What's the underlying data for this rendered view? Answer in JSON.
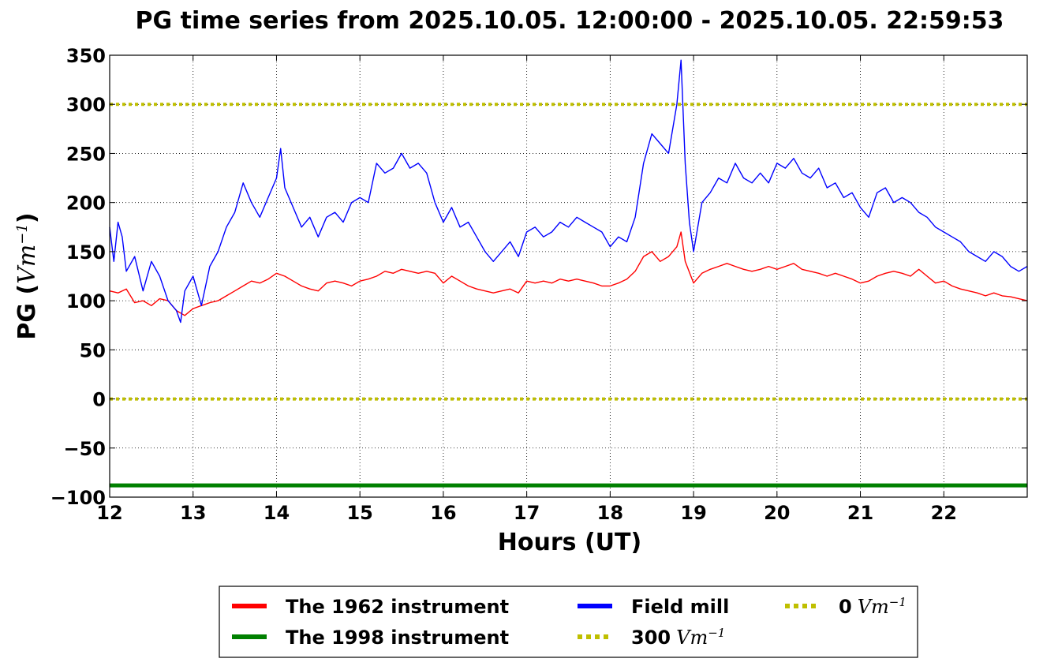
{
  "chart_data": {
    "type": "line",
    "title": "PG time series from 2025.10.05. 12:00:00 - 2025.10.05. 22:59:53",
    "xlabel": "Hours (UT)",
    "ylabel": {
      "prefix": "PG (",
      "math": "Vm",
      "sup": "−1",
      "suffix": ")"
    },
    "xlim": [
      12,
      23
    ],
    "ylim": [
      -100,
      350
    ],
    "x_ticks": [
      "12",
      "13",
      "14",
      "15",
      "16",
      "17",
      "18",
      "19",
      "20",
      "21",
      "22"
    ],
    "y_ticks": [
      "350",
      "300",
      "250",
      "200",
      "150",
      "100",
      "50",
      "0",
      "−50",
      "−100"
    ],
    "grid": true,
    "legend_position": "bottom-center",
    "series": [
      {
        "name": "The 1962 instrument",
        "color": "#ff0000",
        "x": [
          12.0,
          12.1,
          12.2,
          12.3,
          12.4,
          12.5,
          12.6,
          12.7,
          12.8,
          12.9,
          13.0,
          13.1,
          13.2,
          13.3,
          13.4,
          13.5,
          13.6,
          13.7,
          13.8,
          13.9,
          14.0,
          14.1,
          14.2,
          14.3,
          14.4,
          14.5,
          14.6,
          14.7,
          14.8,
          14.9,
          15.0,
          15.1,
          15.2,
          15.3,
          15.4,
          15.5,
          15.6,
          15.7,
          15.8,
          15.9,
          16.0,
          16.1,
          16.2,
          16.3,
          16.4,
          16.5,
          16.6,
          16.7,
          16.8,
          16.9,
          17.0,
          17.1,
          17.2,
          17.3,
          17.4,
          17.5,
          17.6,
          17.7,
          17.8,
          17.9,
          18.0,
          18.1,
          18.2,
          18.3,
          18.4,
          18.5,
          18.6,
          18.7,
          18.8,
          18.85,
          18.9,
          19.0,
          19.1,
          19.2,
          19.3,
          19.4,
          19.5,
          19.6,
          19.7,
          19.8,
          19.9,
          20.0,
          20.1,
          20.2,
          20.3,
          20.4,
          20.5,
          20.6,
          20.7,
          20.8,
          20.9,
          21.0,
          21.1,
          21.2,
          21.3,
          21.4,
          21.5,
          21.6,
          21.7,
          21.8,
          21.9,
          22.0,
          22.1,
          22.2,
          22.3,
          22.4,
          22.5,
          22.6,
          22.7,
          22.8,
          22.9,
          23.0
        ],
        "y": [
          110,
          108,
          112,
          98,
          100,
          95,
          102,
          100,
          90,
          85,
          92,
          95,
          98,
          100,
          105,
          110,
          115,
          120,
          118,
          122,
          128,
          125,
          120,
          115,
          112,
          110,
          118,
          120,
          118,
          115,
          120,
          122,
          125,
          130,
          128,
          132,
          130,
          128,
          130,
          128,
          118,
          125,
          120,
          115,
          112,
          110,
          108,
          110,
          112,
          108,
          120,
          118,
          120,
          118,
          122,
          120,
          122,
          120,
          118,
          115,
          115,
          118,
          122,
          130,
          145,
          150,
          140,
          145,
          155,
          170,
          140,
          118,
          128,
          132,
          135,
          138,
          135,
          132,
          130,
          132,
          135,
          132,
          135,
          138,
          132,
          130,
          128,
          125,
          128,
          125,
          122,
          118,
          120,
          125,
          128,
          130,
          128,
          125,
          132,
          125,
          118,
          120,
          115,
          112,
          110,
          108,
          105,
          108,
          105,
          104,
          102,
          100
        ]
      },
      {
        "name": "The 1998 instrument",
        "color": "#008000",
        "x": [
          12,
          23
        ],
        "y": [
          -88,
          -88
        ]
      },
      {
        "name": "Field mill",
        "color": "#0000ff",
        "x": [
          12.0,
          12.05,
          12.1,
          12.15,
          12.2,
          12.3,
          12.4,
          12.5,
          12.6,
          12.7,
          12.8,
          12.85,
          12.9,
          13.0,
          13.1,
          13.2,
          13.3,
          13.4,
          13.5,
          13.6,
          13.7,
          13.8,
          13.9,
          14.0,
          14.05,
          14.1,
          14.2,
          14.3,
          14.4,
          14.5,
          14.6,
          14.7,
          14.8,
          14.9,
          15.0,
          15.1,
          15.2,
          15.3,
          15.4,
          15.5,
          15.6,
          15.7,
          15.8,
          15.9,
          16.0,
          16.1,
          16.2,
          16.3,
          16.4,
          16.5,
          16.6,
          16.7,
          16.8,
          16.9,
          17.0,
          17.1,
          17.2,
          17.3,
          17.4,
          17.5,
          17.6,
          17.7,
          17.8,
          17.9,
          18.0,
          18.1,
          18.2,
          18.3,
          18.4,
          18.5,
          18.6,
          18.7,
          18.8,
          18.85,
          18.9,
          18.95,
          19.0,
          19.1,
          19.2,
          19.3,
          19.4,
          19.5,
          19.6,
          19.7,
          19.8,
          19.9,
          20.0,
          20.1,
          20.2,
          20.3,
          20.4,
          20.5,
          20.6,
          20.7,
          20.8,
          20.9,
          21.0,
          21.1,
          21.2,
          21.3,
          21.4,
          21.5,
          21.6,
          21.7,
          21.8,
          21.9,
          22.0,
          22.1,
          22.2,
          22.3,
          22.4,
          22.5,
          22.6,
          22.7,
          22.8,
          22.9,
          23.0
        ],
        "y": [
          175,
          140,
          180,
          165,
          130,
          145,
          110,
          140,
          125,
          100,
          90,
          78,
          110,
          125,
          95,
          135,
          150,
          175,
          190,
          220,
          200,
          185,
          205,
          225,
          255,
          215,
          195,
          175,
          185,
          165,
          185,
          190,
          180,
          200,
          205,
          200,
          240,
          230,
          235,
          250,
          235,
          240,
          230,
          200,
          180,
          195,
          175,
          180,
          165,
          150,
          140,
          150,
          160,
          145,
          170,
          175,
          165,
          170,
          180,
          175,
          185,
          180,
          175,
          170,
          155,
          165,
          160,
          185,
          240,
          270,
          260,
          250,
          300,
          345,
          240,
          180,
          150,
          200,
          210,
          225,
          220,
          240,
          225,
          220,
          230,
          220,
          240,
          235,
          245,
          230,
          225,
          235,
          215,
          220,
          205,
          210,
          195,
          185,
          210,
          215,
          200,
          205,
          200,
          190,
          185,
          175,
          170,
          165,
          160,
          150,
          145,
          140,
          150,
          145,
          135,
          130,
          135
        ]
      },
      {
        "name": "300",
        "math": "Vm",
        "sup": "−1",
        "color": "#bfbf00",
        "style": "dotted",
        "x": [
          12,
          23
        ],
        "y": [
          300,
          300
        ]
      },
      {
        "name": "0",
        "math": "Vm",
        "sup": "−1",
        "color": "#bfbf00",
        "style": "dotted",
        "x": [
          12,
          23
        ],
        "y": [
          0,
          0
        ]
      }
    ]
  }
}
